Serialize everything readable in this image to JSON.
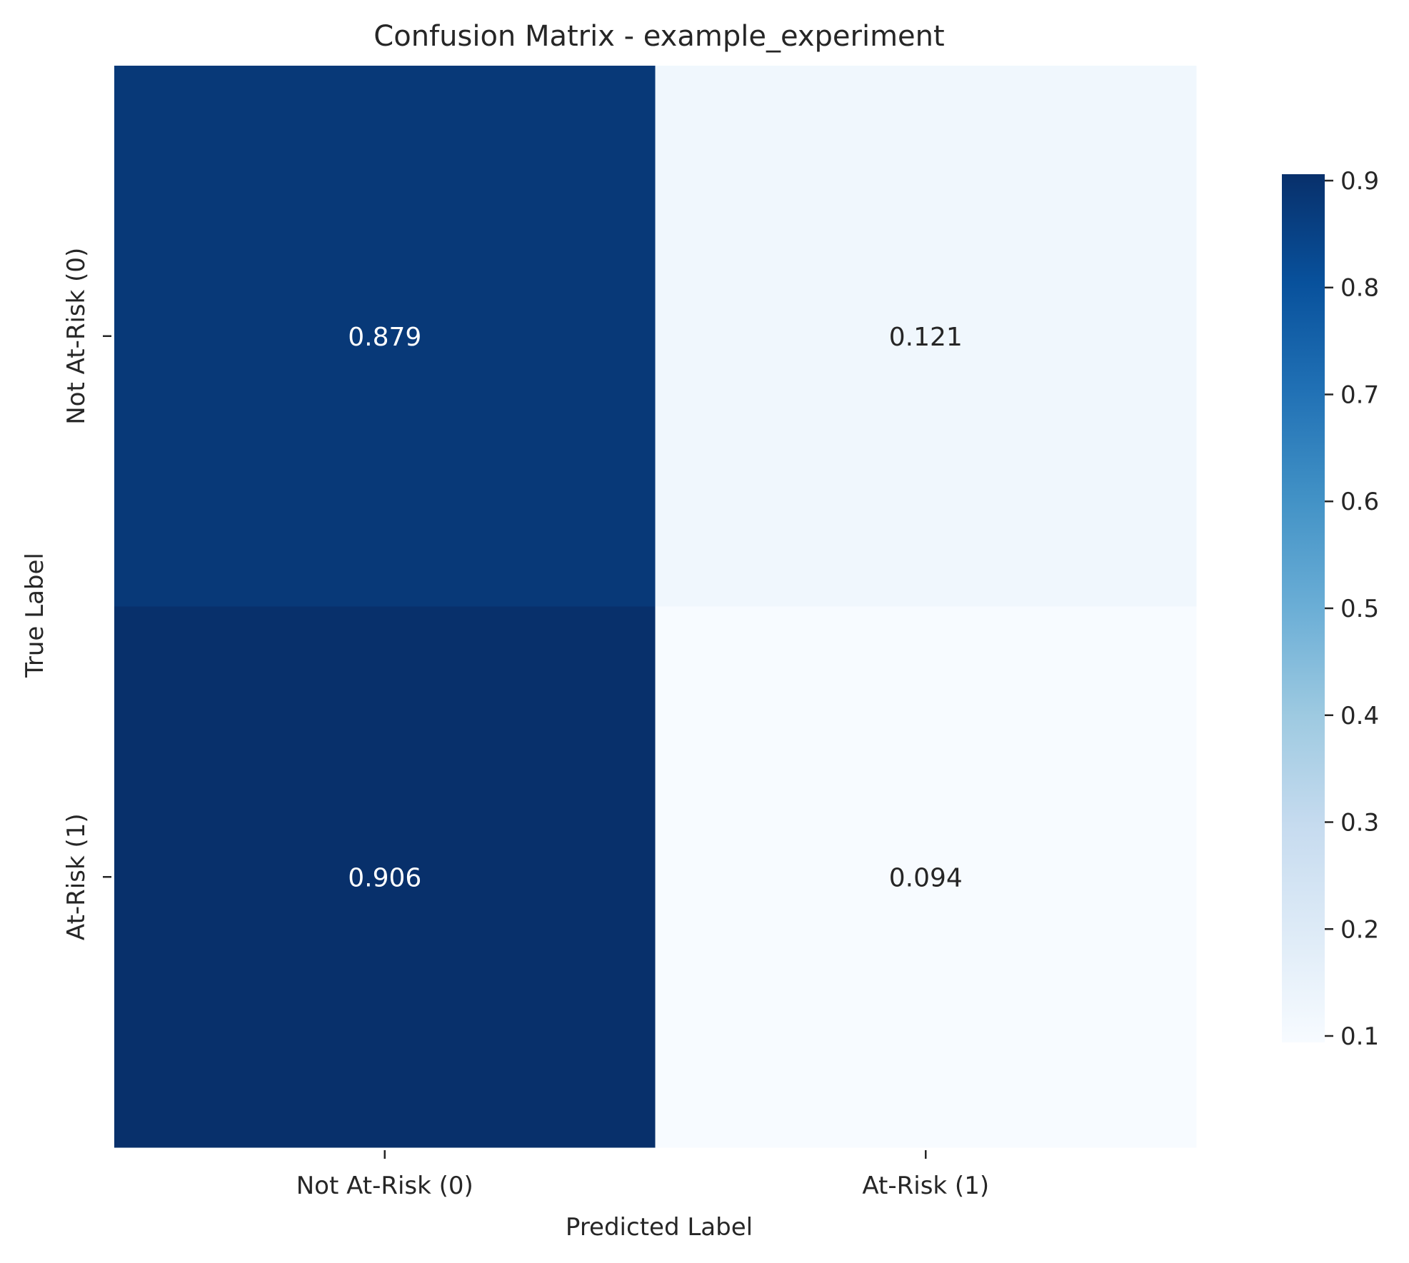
{
  "chart_data": {
    "type": "heatmap",
    "title": "Confusion Matrix - example_experiment",
    "xlabel": "Predicted Label",
    "ylabel": "True Label",
    "x_categories": [
      "Not At-Risk (0)",
      "At-Risk (1)"
    ],
    "y_categories": [
      "Not At-Risk (0)",
      "At-Risk (1)"
    ],
    "matrix": [
      [
        0.879,
        0.121
      ],
      [
        0.906,
        0.094
      ]
    ],
    "cell_labels": [
      [
        "0.879",
        "0.121"
      ],
      [
        "0.906",
        "0.094"
      ]
    ],
    "colormap": "Blues",
    "colorbar": {
      "range": [
        0.094,
        0.906
      ],
      "ticks": [
        0.1,
        0.2,
        0.3,
        0.4,
        0.5,
        0.6,
        0.7,
        0.8,
        0.9
      ],
      "tick_labels": [
        "0.1",
        "0.2",
        "0.3",
        "0.4",
        "0.5",
        "0.6",
        "0.7",
        "0.8",
        "0.9"
      ]
    },
    "grid": false,
    "legend": "colorbar-right"
  },
  "colors": {
    "text_dark": "#262626",
    "text_light": "#ffffff",
    "cmap_low": "#f7fbff",
    "cmap_high": "#08306b"
  }
}
